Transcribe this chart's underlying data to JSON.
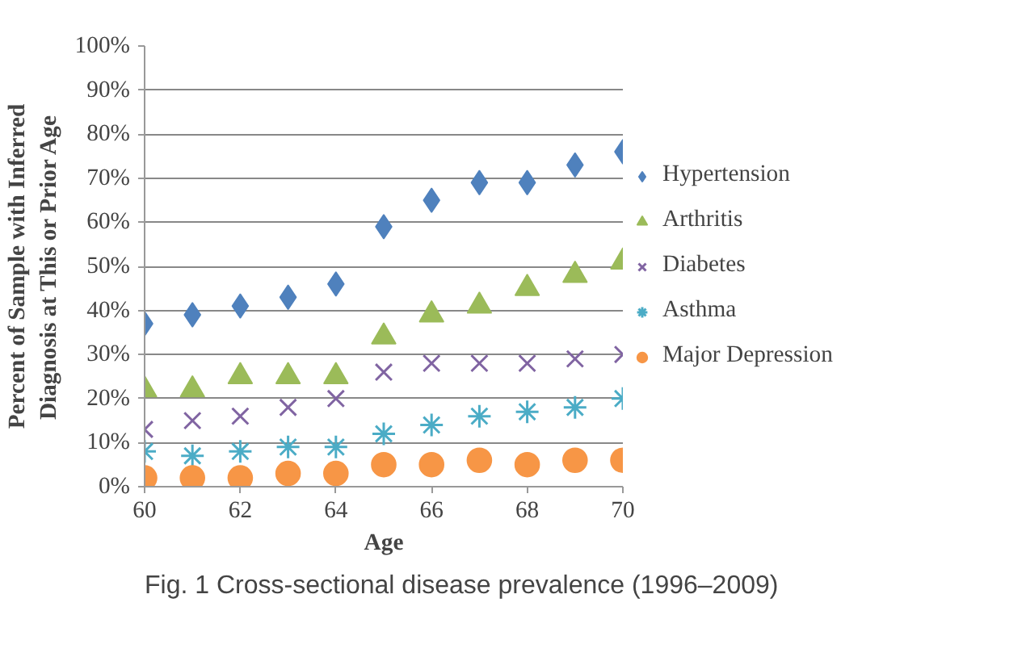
{
  "chart_data": {
    "type": "scatter",
    "xlabel": "Age",
    "ylabel": "Percent of Sample with Inferred\nDiagnosis at This or Prior Age",
    "annotations": [
      "Fig. 1 Cross-sectional disease prevalence (1996–2009)"
    ],
    "x": [
      60,
      61,
      62,
      63,
      64,
      65,
      66,
      67,
      68,
      69,
      70
    ],
    "series": [
      {
        "name": "Hypertension",
        "color": "#4f81bd",
        "marker": "diamond",
        "values": [
          37,
          39,
          41,
          43,
          46,
          59,
          65,
          69,
          69,
          73,
          76
        ]
      },
      {
        "name": "Arthritis",
        "color": "#9bbb59",
        "marker": "triangle",
        "values": [
          22,
          22,
          25,
          25,
          25,
          34,
          39,
          41,
          45,
          48,
          51
        ]
      },
      {
        "name": "Diabetes",
        "color": "#8064a2",
        "marker": "cross",
        "values": [
          13,
          15,
          16,
          18,
          20,
          26,
          28,
          28,
          28,
          29,
          30
        ]
      },
      {
        "name": "Asthma",
        "color": "#4bacc6",
        "marker": "cross",
        "values": [
          8,
          7,
          8,
          9,
          9,
          12,
          14,
          16,
          17,
          18,
          20
        ]
      },
      {
        "name": "Major Depression",
        "color": "#f79646",
        "marker": "circle",
        "values": [
          2,
          2,
          2,
          3,
          3,
          5,
          5,
          6,
          5,
          6,
          6
        ]
      }
    ],
    "xlim": [
      60,
      70
    ],
    "xticks": [
      60,
      62,
      64,
      66,
      68,
      70
    ],
    "ylim": [
      0,
      100
    ],
    "yticks": [
      {
        "value": 0,
        "label": "0%"
      },
      {
        "value": 10,
        "label": "10%"
      },
      {
        "value": 20,
        "label": "20%"
      },
      {
        "value": 30,
        "label": "30%"
      },
      {
        "value": 40,
        "label": "40%"
      },
      {
        "value": 50,
        "label": "50%"
      },
      {
        "value": 60,
        "label": "60%"
      },
      {
        "value": 70,
        "label": "70%"
      },
      {
        "value": 80,
        "label": "80%"
      },
      {
        "value": 90,
        "label": "90%"
      },
      {
        "value": 100,
        "label": "100%"
      }
    ],
    "grid": "y",
    "legend": "right"
  }
}
